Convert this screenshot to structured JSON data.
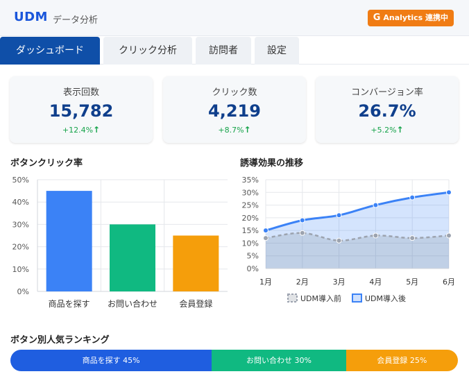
{
  "header": {
    "logo": "UDM",
    "subtitle": "データ分析",
    "badge_icon": "G",
    "badge_label": "Analytics 連携中",
    "badge_color": "#f07c14"
  },
  "tabs": [
    {
      "label": "ダッシュボード",
      "active": true
    },
    {
      "label": "クリック分析",
      "active": false
    },
    {
      "label": "訪問者",
      "active": false
    },
    {
      "label": "設定",
      "active": false
    }
  ],
  "stats": [
    {
      "label": "表示回数",
      "value": "15,782",
      "change": "+12.4%",
      "arrow": "↑"
    },
    {
      "label": "クリック数",
      "value": "4,219",
      "change": "+8.7%",
      "arrow": "↑"
    },
    {
      "label": "コンバージョン率",
      "value": "26.7%",
      "change": "+5.2%",
      "arrow": "↑"
    }
  ],
  "bar_section_title": "ボタンクリック率",
  "line_section_title": "誘導効果の推移",
  "ranking_title": "ボタン別人気ランキング",
  "chart_data": [
    {
      "type": "bar",
      "categories": [
        "商品を探す",
        "お問い合わせ",
        "会員登録"
      ],
      "values": [
        45,
        30,
        25
      ],
      "colors": [
        "#3b82f6",
        "#10b981",
        "#f59e0b"
      ],
      "ylim": [
        0,
        50
      ],
      "yticks": [
        "0%",
        "10%",
        "20%",
        "30%",
        "40%",
        "50%"
      ],
      "title": "ボタンクリック率",
      "grid": true
    },
    {
      "type": "line",
      "x": [
        "1月",
        "2月",
        "3月",
        "4月",
        "5月",
        "6月"
      ],
      "series": [
        {
          "name": "UDM導入前",
          "values": [
            12,
            14,
            11,
            13,
            12,
            13
          ],
          "color": "#9ca3af"
        },
        {
          "name": "UDM導入後",
          "values": [
            15,
            19,
            21,
            25,
            28,
            30
          ],
          "color": "#3b82f6"
        }
      ],
      "ylim": [
        0,
        35
      ],
      "yticks": [
        "0%",
        "5%",
        "10%",
        "15%",
        "20%",
        "25%",
        "30%",
        "35%"
      ],
      "title": "誘導効果の推移",
      "legend": "bottom",
      "grid": true
    },
    {
      "type": "bar",
      "title": "ボタン別人気ランキング",
      "stacked": true,
      "items": [
        {
          "label": "商品を探す 45%",
          "value": 45,
          "color": "#1f5ee0"
        },
        {
          "label": "お問い合わせ 30%",
          "value": 30,
          "color": "#10b981"
        },
        {
          "label": "会員登録 25%",
          "value": 25,
          "color": "#f59e0b"
        }
      ]
    }
  ]
}
